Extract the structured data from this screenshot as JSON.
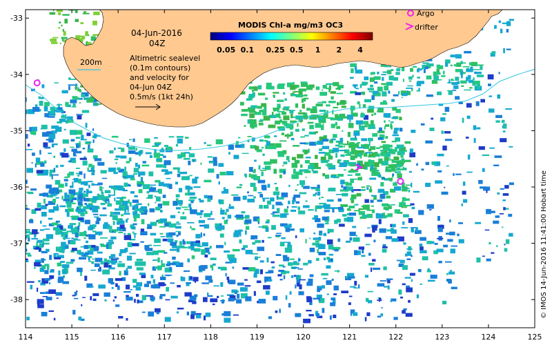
{
  "map": {
    "date": "04-Jun-2016",
    "time": "04Z",
    "contour_label": "200m",
    "description_lines": [
      "Altimetric sealevel",
      "(0.1m contours)",
      "and velocity for",
      "04-Jun 04Z",
      "0.5m/s (1kt 24h)"
    ],
    "credit": "© IMOS 14-Jun-2016 11:41:00 Hobart time",
    "land_color": "#ffc990",
    "contour_color": "#34c6e6"
  },
  "axes": {
    "x_ticks": [
      "114",
      "115",
      "116",
      "117",
      "118",
      "119",
      "120",
      "121",
      "122",
      "123",
      "124",
      "125"
    ],
    "y_ticks": [
      "-33",
      "-34",
      "-35",
      "-36",
      "-37",
      "-38"
    ]
  },
  "colorbar": {
    "title": "MODIS Chl-a mg/m3 OC3",
    "ticks": [
      "0.05",
      "0.1",
      "0.25",
      "0.5",
      "1",
      "2",
      "4"
    ],
    "colors": [
      "#00007f",
      "#0000ff",
      "#007fff",
      "#00ffff",
      "#7fff7f",
      "#ffff00",
      "#ff7f00",
      "#ff0000",
      "#7f0000"
    ]
  },
  "legend": {
    "argo_label": "Argo",
    "drifter_label": "drifter",
    "marker_color": "#ee22ee"
  },
  "markers": {
    "argo": [
      {
        "lon": 114.25,
        "lat": -34.15
      },
      {
        "lon": 122.1,
        "lat": -35.9
      }
    ],
    "drifter": [
      {
        "lon": 121.2,
        "lat": -35.65
      }
    ]
  }
}
